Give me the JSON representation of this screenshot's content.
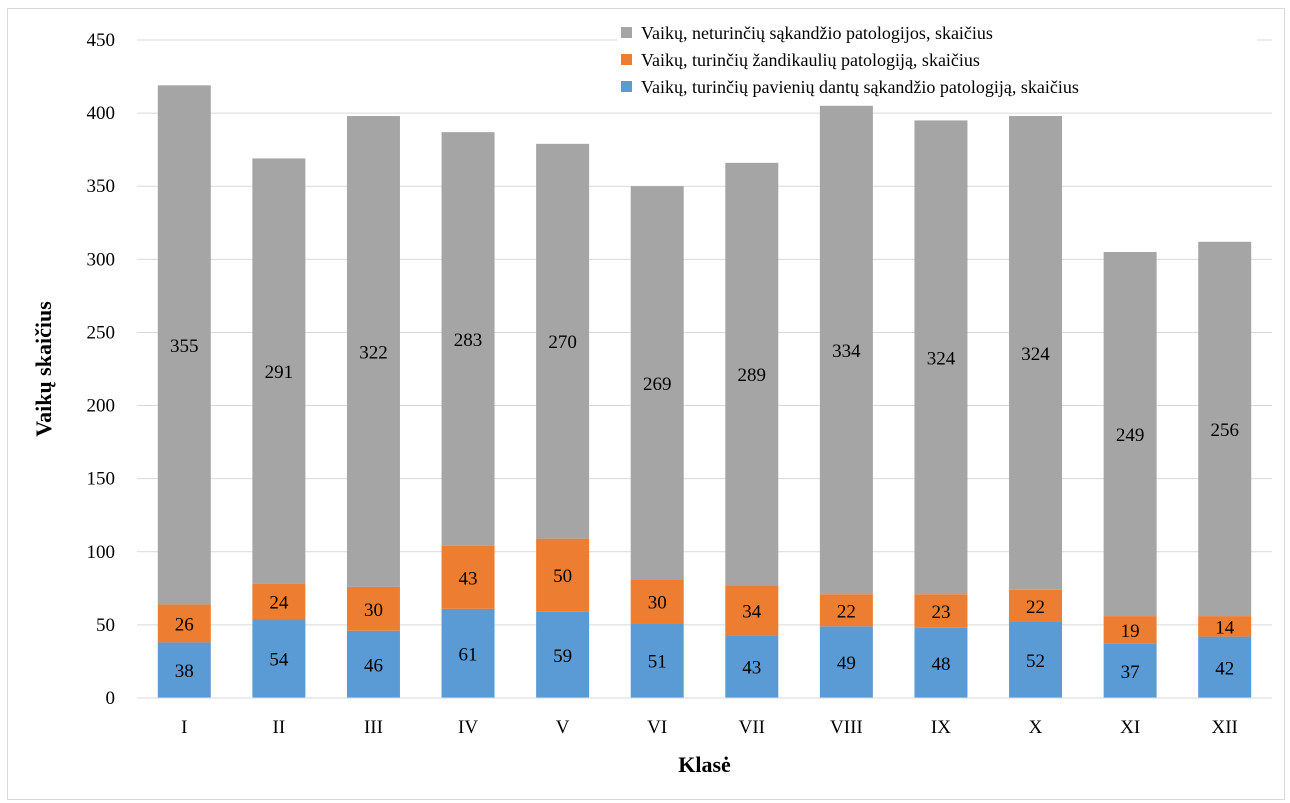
{
  "chart_data": {
    "type": "bar",
    "stacked": true,
    "title": "",
    "xlabel": "Klasė",
    "ylabel": "Vaikų skaičius",
    "ylim": [
      0,
      450
    ],
    "yticks": [
      0,
      50,
      100,
      150,
      200,
      250,
      300,
      350,
      400,
      450
    ],
    "grid": true,
    "legend_position": "top-right",
    "categories": [
      "I",
      "II",
      "III",
      "IV",
      "V",
      "VI",
      "VII",
      "VIII",
      "IX",
      "X",
      "XI",
      "XII"
    ],
    "series": [
      {
        "name": "Vaikų, turinčių pavienių dantų sąkandžio patologiją, skaičius",
        "color": "#5b9bd5",
        "values": [
          38,
          54,
          46,
          61,
          59,
          51,
          43,
          49,
          48,
          52,
          37,
          42
        ]
      },
      {
        "name": "Vaikų, turinčių žandikaulių  patologiją, skaičius",
        "color": "#ed7d31",
        "values": [
          26,
          24,
          30,
          43,
          50,
          30,
          34,
          22,
          23,
          22,
          19,
          14
        ]
      },
      {
        "name": "Vaikų, neturinčių sąkandžio patologijos,  skaičius",
        "color": "#a5a5a5",
        "values": [
          355,
          291,
          322,
          283,
          270,
          269,
          289,
          334,
          324,
          324,
          249,
          256
        ]
      }
    ],
    "legend_order": [
      2,
      1,
      0
    ]
  }
}
